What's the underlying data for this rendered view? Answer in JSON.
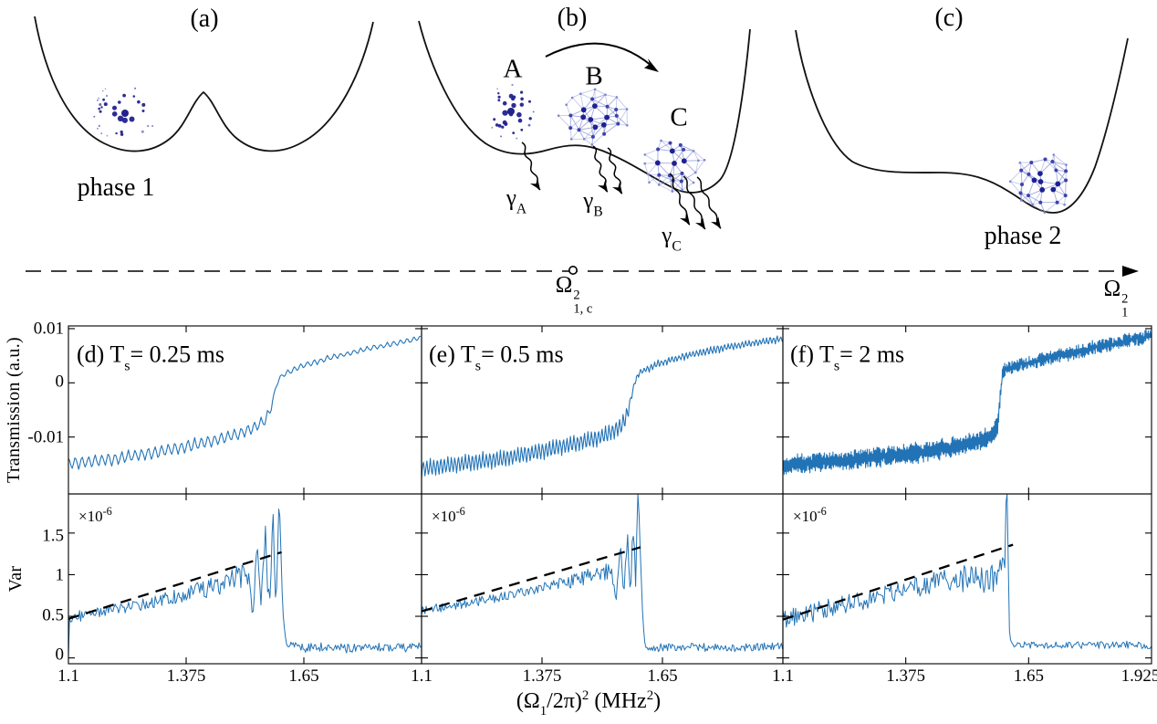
{
  "figure_labels": {
    "a_tag": "(a)",
    "b_tag": "(b)",
    "c_tag": "(c)",
    "phase1": "phase 1",
    "phase2": "phase 2",
    "cluster_a": "A",
    "cluster_b": "B",
    "cluster_c": "C",
    "gamma": "γ",
    "gamma_a_sub": "A",
    "gamma_b_sub": "B",
    "gamma_c_sub": "C",
    "omega_critical": {
      "base": "Ω",
      "sup": "2",
      "sub": "1, c"
    },
    "omega_axis": {
      "base": "Ω",
      "sup": "2",
      "sub": "1"
    }
  },
  "plots": {
    "transmission_ylabel": "Transmission (a.u.)",
    "var_ylabel": "Var",
    "exponent_label": {
      "base": "×10",
      "exp": "-6"
    },
    "xlabel": {
      "p1": "(Ω",
      "p1_sub": "1",
      "p2": "/2π)",
      "p2_sup": "2",
      "p3": " (MHz",
      "p3_sup": "2",
      "p4": ")"
    },
    "transmission_yticks": [
      "0.01",
      "0",
      "-0.01"
    ],
    "var_yticks": [
      "1.5",
      "1",
      "0.5",
      "0"
    ],
    "xtick_labels": [
      [
        "1.1",
        "1.375",
        "1.65"
      ],
      [
        "1.1",
        "1.375",
        "1.65"
      ],
      [
        "1.1",
        "1.375",
        "1.65",
        "1.925"
      ]
    ],
    "panel_titles": {
      "d": {
        "prefix": "(d) T",
        "sub": "s",
        "rest": "= 0.25 ms"
      },
      "e": {
        "prefix": "(e) T",
        "sub": "s",
        "rest": "= 0.5 ms"
      },
      "f": {
        "prefix": "(f) T",
        "sub": "s",
        "rest": "= 2 ms"
      }
    }
  },
  "colors": {
    "trace": "#2273b6",
    "fit_line": "#000000",
    "axis": "#000000",
    "curve": "#111111",
    "gas_dot": "#22228e",
    "lattice_edge": "#959dd8",
    "lattice_node": "#272b9e"
  },
  "chart_data": [
    {
      "id": "transmission-d",
      "type": "line",
      "row": "transmission",
      "col": 0,
      "seed": 101,
      "title": "(d) Ts = 0.25 ms",
      "ylabel": "Transmission (a.u.)",
      "x_range": [
        1.1,
        1.925
      ],
      "y_range": [
        -0.0205,
        0.0105
      ],
      "x_ticks": [
        1.1,
        1.375,
        1.65,
        1.925
      ],
      "y_ticks": [
        0.01,
        0,
        -0.01
      ],
      "transition_x": 1.578,
      "trend": [
        [
          1.1,
          -0.0149
        ],
        [
          1.2,
          -0.0141
        ],
        [
          1.3,
          -0.0129
        ],
        [
          1.38,
          -0.0117
        ],
        [
          1.44,
          -0.0106
        ],
        [
          1.49,
          -0.0096
        ],
        [
          1.53,
          -0.0085
        ],
        [
          1.555,
          -0.0072
        ],
        [
          1.568,
          -0.0058
        ],
        [
          1.578,
          -0.003
        ],
        [
          1.588,
          0.0002
        ],
        [
          1.6,
          0.0015
        ],
        [
          1.65,
          0.0032
        ],
        [
          1.72,
          0.0048
        ],
        [
          1.8,
          0.0063
        ],
        [
          1.87,
          0.0074
        ],
        [
          1.925,
          0.0083
        ]
      ],
      "osc": {
        "period": 0.0155,
        "amp_pre": 0.0012,
        "amp_post": 0.0005,
        "noise": 0.00015
      }
    },
    {
      "id": "transmission-e",
      "type": "line",
      "row": "transmission",
      "col": 1,
      "seed": 202,
      "title": "(e) Ts = 0.5 ms",
      "x_range": [
        1.1,
        1.925
      ],
      "y_range": [
        -0.0205,
        0.0105
      ],
      "x_ticks": [
        1.1,
        1.375,
        1.65,
        1.925
      ],
      "y_ticks": [
        0.01,
        0,
        -0.01
      ],
      "transition_x": 1.575,
      "trend": [
        [
          1.1,
          -0.0158
        ],
        [
          1.2,
          -0.0149
        ],
        [
          1.3,
          -0.0138
        ],
        [
          1.38,
          -0.0125
        ],
        [
          1.44,
          -0.0114
        ],
        [
          1.49,
          -0.0104
        ],
        [
          1.53,
          -0.0093
        ],
        [
          1.555,
          -0.008
        ],
        [
          1.568,
          -0.0062
        ],
        [
          1.578,
          -0.0028
        ],
        [
          1.588,
          0.0005
        ],
        [
          1.6,
          0.002
        ],
        [
          1.65,
          0.0038
        ],
        [
          1.72,
          0.0053
        ],
        [
          1.8,
          0.0066
        ],
        [
          1.87,
          0.0075
        ],
        [
          1.925,
          0.0081
        ]
      ],
      "osc": {
        "period": 0.008,
        "amp_pre": 0.0016,
        "amp_post": 0.0006,
        "noise": 0.0002
      }
    },
    {
      "id": "transmission-f",
      "type": "line",
      "row": "transmission",
      "col": 2,
      "seed": 303,
      "title": "(f) Ts = 2 ms",
      "x_range": [
        1.1,
        1.925
      ],
      "y_range": [
        -0.0205,
        0.0105
      ],
      "x_ticks": [
        1.1,
        1.375,
        1.65,
        1.925
      ],
      "y_ticks": [
        0.01,
        0,
        -0.01
      ],
      "transition_x": 1.586,
      "trend": [
        [
          1.1,
          -0.0153
        ],
        [
          1.2,
          -0.0146
        ],
        [
          1.3,
          -0.0138
        ],
        [
          1.4,
          -0.0129
        ],
        [
          1.48,
          -0.0119
        ],
        [
          1.54,
          -0.0108
        ],
        [
          1.57,
          -0.0097
        ],
        [
          1.58,
          -0.0082
        ],
        [
          1.586,
          -0.003
        ],
        [
          1.592,
          0.0022
        ],
        [
          1.62,
          0.0031
        ],
        [
          1.68,
          0.0043
        ],
        [
          1.75,
          0.0056
        ],
        [
          1.82,
          0.0069
        ],
        [
          1.925,
          0.0087
        ]
      ],
      "osc": {
        "period": 0.0024,
        "amp_pre": 0.0014,
        "amp_post": 0.0008,
        "noise": 0.0007
      }
    },
    {
      "id": "var-d",
      "type": "line",
      "row": "var",
      "col": 0,
      "seed": 404,
      "ylabel": "Var ×10^-6",
      "x_range": [
        1.1,
        1.925
      ],
      "y_range": [
        -0.07,
        1.97
      ],
      "x_ticks": [
        1.1,
        1.375,
        1.65,
        1.925
      ],
      "y_ticks": [
        1.5,
        1,
        0.5,
        0
      ],
      "trend": [
        [
          1.1,
          0.05
        ],
        [
          1.103,
          0.48
        ],
        [
          1.15,
          0.53
        ],
        [
          1.2,
          0.57
        ],
        [
          1.25,
          0.62
        ],
        [
          1.3,
          0.67
        ],
        [
          1.35,
          0.74
        ],
        [
          1.4,
          0.8
        ],
        [
          1.45,
          0.88
        ],
        [
          1.49,
          0.95
        ],
        [
          1.52,
          1.02
        ],
        [
          1.53,
          0.55
        ],
        [
          1.54,
          1.3
        ],
        [
          1.55,
          0.52
        ],
        [
          1.56,
          1.52
        ],
        [
          1.57,
          0.48
        ],
        [
          1.578,
          1.68
        ],
        [
          1.585,
          0.55
        ],
        [
          1.592,
          1.85
        ],
        [
          1.598,
          0.95
        ],
        [
          1.603,
          0.38
        ],
        [
          1.61,
          0.16
        ],
        [
          1.65,
          0.12
        ],
        [
          1.7,
          0.13
        ],
        [
          1.75,
          0.11
        ],
        [
          1.8,
          0.14
        ],
        [
          1.87,
          0.12
        ],
        [
          1.925,
          0.13
        ]
      ],
      "noise": {
        "pre": 0.07,
        "spike_start": 1.3,
        "spike_gain": 1.6,
        "drop_x": 1.606,
        "post": 0.055
      },
      "fit": [
        [
          1.1,
          0.47
        ],
        [
          1.598,
          1.27
        ]
      ]
    },
    {
      "id": "var-e",
      "type": "line",
      "row": "var",
      "col": 1,
      "seed": 505,
      "x_range": [
        1.1,
        1.925
      ],
      "y_range": [
        -0.07,
        1.97
      ],
      "x_ticks": [
        1.1,
        1.375,
        1.65,
        1.925
      ],
      "y_ticks": [
        1.5,
        1,
        0.5,
        0
      ],
      "trend": [
        [
          1.1,
          0.57
        ],
        [
          1.15,
          0.61
        ],
        [
          1.2,
          0.65
        ],
        [
          1.25,
          0.7
        ],
        [
          1.3,
          0.75
        ],
        [
          1.35,
          0.81
        ],
        [
          1.4,
          0.87
        ],
        [
          1.45,
          0.93
        ],
        [
          1.5,
          1.0
        ],
        [
          1.53,
          1.05
        ],
        [
          1.545,
          0.78
        ],
        [
          1.555,
          1.35
        ],
        [
          1.562,
          0.75
        ],
        [
          1.57,
          1.45
        ],
        [
          1.577,
          0.82
        ],
        [
          1.583,
          1.62
        ],
        [
          1.589,
          0.95
        ],
        [
          1.594,
          2.4
        ],
        [
          1.6,
          1.1
        ],
        [
          1.605,
          0.55
        ],
        [
          1.61,
          0.14
        ],
        [
          1.65,
          0.12
        ],
        [
          1.7,
          0.13
        ],
        [
          1.8,
          0.12
        ],
        [
          1.87,
          0.13
        ],
        [
          1.925,
          0.14
        ]
      ],
      "noise": {
        "pre": 0.055,
        "spike_start": 1.35,
        "spike_gain": 1.5,
        "drop_x": 1.608,
        "post": 0.05
      },
      "fit": [
        [
          1.1,
          0.56
        ],
        [
          1.6,
          1.33
        ]
      ]
    },
    {
      "id": "var-f",
      "type": "line",
      "row": "var",
      "col": 2,
      "seed": 606,
      "x_range": [
        1.1,
        1.925
      ],
      "y_range": [
        -0.07,
        1.97
      ],
      "x_ticks": [
        1.1,
        1.375,
        1.65,
        1.925
      ],
      "y_ticks": [
        1.5,
        1,
        0.5,
        0
      ],
      "trend": [
        [
          1.1,
          0.46
        ],
        [
          1.16,
          0.54
        ],
        [
          1.22,
          0.62
        ],
        [
          1.28,
          0.7
        ],
        [
          1.34,
          0.78
        ],
        [
          1.4,
          0.85
        ],
        [
          1.46,
          0.91
        ],
        [
          1.5,
          0.95
        ],
        [
          1.54,
          0.97
        ],
        [
          1.57,
          0.98
        ],
        [
          1.59,
          1.0
        ],
        [
          1.597,
          1.2
        ],
        [
          1.601,
          2.4
        ],
        [
          1.605,
          0.7
        ],
        [
          1.61,
          0.17
        ],
        [
          1.65,
          0.15
        ],
        [
          1.7,
          0.16
        ],
        [
          1.8,
          0.15
        ],
        [
          1.87,
          0.16
        ],
        [
          1.925,
          0.15
        ]
      ],
      "noise": {
        "pre": 0.12,
        "spike_start": 1.4,
        "spike_gain": 0.8,
        "drop_x": 1.608,
        "post": 0.045
      },
      "fit": [
        [
          1.1,
          0.46
        ],
        [
          1.615,
          1.36
        ]
      ]
    }
  ]
}
